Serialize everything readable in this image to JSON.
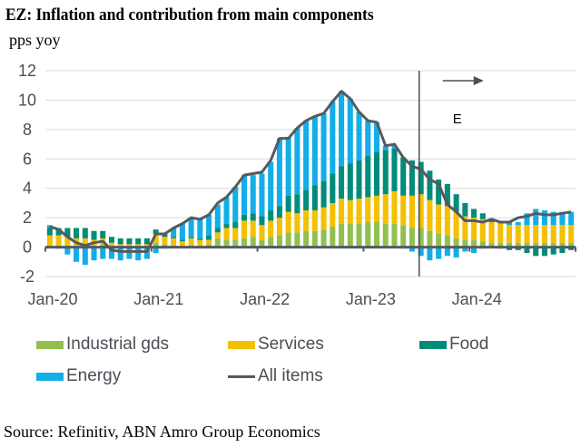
{
  "chart_data": {
    "type": "bar",
    "stacked": true,
    "title": "EZ: Inflation and contribution from main components",
    "ylabel": "pps yoy",
    "xlabel": "",
    "ylim": [
      -2,
      12
    ],
    "yticks": [
      -2,
      0,
      2,
      4,
      6,
      8,
      10,
      12
    ],
    "xtick_labels": [
      "Jan-20",
      "Jan-21",
      "Jan-22",
      "Jan-23",
      "Jan-24"
    ],
    "grid": true,
    "legend_position": "bottom",
    "source": "Source: Refinitiv, ABN Amro Group Economics",
    "forecast_marker": {
      "start_month": "Jul-23",
      "label": "E",
      "arrow": "right"
    },
    "categories": [
      "Jan-20",
      "Feb-20",
      "Mar-20",
      "Apr-20",
      "May-20",
      "Jun-20",
      "Jul-20",
      "Aug-20",
      "Sep-20",
      "Oct-20",
      "Nov-20",
      "Dec-20",
      "Jan-21",
      "Feb-21",
      "Mar-21",
      "Apr-21",
      "May-21",
      "Jun-21",
      "Jul-21",
      "Aug-21",
      "Sep-21",
      "Oct-21",
      "Nov-21",
      "Dec-21",
      "Jan-22",
      "Feb-22",
      "Mar-22",
      "Apr-22",
      "May-22",
      "Jun-22",
      "Jul-22",
      "Aug-22",
      "Sep-22",
      "Oct-22",
      "Nov-22",
      "Dec-22",
      "Jan-23",
      "Feb-23",
      "Mar-23",
      "Apr-23",
      "May-23",
      "Jun-23",
      "Jul-23",
      "Aug-23",
      "Sep-23",
      "Oct-23",
      "Nov-23",
      "Dec-23",
      "Jan-24",
      "Feb-24",
      "Mar-24",
      "Apr-24",
      "May-24",
      "Jun-24",
      "Jul-24",
      "Aug-24",
      "Sep-24",
      "Oct-24",
      "Nov-24",
      "Dec-24"
    ],
    "series": [
      {
        "name": "Industrial gds",
        "kind": "bar",
        "color": "#92c050",
        "values": [
          0.1,
          0.1,
          0.1,
          0.1,
          0.1,
          0.1,
          0.2,
          0.0,
          0.0,
          0.0,
          0.0,
          0.0,
          0.3,
          0.2,
          0.1,
          0.0,
          0.1,
          0.1,
          0.2,
          0.6,
          0.5,
          0.5,
          0.6,
          0.7,
          0.5,
          0.7,
          0.8,
          1.0,
          1.0,
          1.1,
          1.1,
          1.2,
          1.4,
          1.6,
          1.6,
          1.6,
          1.7,
          1.7,
          1.6,
          1.6,
          1.5,
          1.3,
          1.3,
          1.1,
          0.9,
          0.8,
          0.6,
          0.5,
          0.5,
          0.4,
          0.3,
          0.3,
          0.3,
          0.3,
          0.3,
          0.3,
          0.3,
          0.3,
          0.3,
          0.3
        ]
      },
      {
        "name": "Services",
        "kind": "bar",
        "color": "#f5c000",
        "values": [
          0.7,
          0.7,
          0.6,
          0.5,
          0.5,
          0.4,
          0.4,
          0.3,
          0.2,
          0.2,
          0.2,
          0.2,
          0.6,
          0.5,
          0.5,
          0.4,
          0.5,
          0.4,
          0.3,
          0.4,
          0.8,
          0.8,
          1.2,
          1.1,
          1.0,
          1.1,
          1.2,
          1.4,
          1.3,
          1.4,
          1.4,
          1.5,
          1.6,
          1.7,
          1.6,
          1.7,
          1.7,
          1.8,
          2.0,
          2.2,
          2.0,
          2.2,
          2.3,
          2.1,
          2.0,
          2.0,
          1.8,
          1.6,
          1.5,
          1.5,
          1.4,
          1.3,
          1.2,
          1.2,
          1.2,
          1.2,
          1.2,
          1.2,
          1.2,
          1.2
        ]
      },
      {
        "name": "Food",
        "kind": "bar",
        "color": "#008c7a",
        "values": [
          0.5,
          0.5,
          0.6,
          0.7,
          0.7,
          0.6,
          0.5,
          0.4,
          0.4,
          0.4,
          0.4,
          0.4,
          0.3,
          0.2,
          0.1,
          0.1,
          0.1,
          0.1,
          0.3,
          0.3,
          0.3,
          0.4,
          0.4,
          0.5,
          0.6,
          0.7,
          0.8,
          1.1,
          1.3,
          1.4,
          1.7,
          1.8,
          2.0,
          2.2,
          2.5,
          2.6,
          2.8,
          3.0,
          3.0,
          2.9,
          2.6,
          2.4,
          2.2,
          2.0,
          1.7,
          1.5,
          1.2,
          0.9,
          0.6,
          0.4,
          0.2,
          -0.1,
          -0.2,
          -0.2,
          -0.4,
          -0.6,
          -0.6,
          -0.5,
          -0.4,
          -0.2
        ]
      },
      {
        "name": "Energy",
        "kind": "bar",
        "color": "#12aee9",
        "values": [
          0.2,
          -0.1,
          -0.5,
          -1.0,
          -1.2,
          -0.9,
          -0.8,
          -0.8,
          -0.9,
          -0.8,
          -0.9,
          -0.8,
          -0.4,
          -0.1,
          0.6,
          1.1,
          1.3,
          1.3,
          1.4,
          1.6,
          1.8,
          2.4,
          2.7,
          2.6,
          2.9,
          3.3,
          4.6,
          4.0,
          4.5,
          4.7,
          4.7,
          4.6,
          4.9,
          5.1,
          4.4,
          3.3,
          2.4,
          2.0,
          0.3,
          0.2,
          -0.1,
          -0.3,
          -0.6,
          -0.9,
          -0.8,
          -0.6,
          -0.7,
          -0.3,
          -0.4,
          -0.1,
          0.0,
          0.2,
          0.2,
          0.2,
          0.8,
          1.1,
          1.0,
          0.9,
          0.9,
          0.9
        ]
      },
      {
        "name": "All items",
        "kind": "line",
        "color": "#555a60",
        "values": [
          1.4,
          1.2,
          0.7,
          0.3,
          0.1,
          0.3,
          0.4,
          -0.2,
          -0.3,
          -0.3,
          -0.3,
          -0.3,
          0.9,
          0.9,
          1.3,
          1.6,
          2.0,
          1.9,
          2.2,
          3.0,
          3.4,
          4.1,
          4.9,
          5.0,
          5.1,
          5.9,
          7.4,
          7.4,
          8.1,
          8.6,
          8.9,
          9.1,
          9.9,
          10.6,
          10.1,
          9.2,
          8.6,
          8.5,
          6.9,
          7.0,
          6.1,
          5.5,
          5.3,
          4.6,
          4.3,
          2.9,
          2.4,
          1.8,
          1.8,
          1.7,
          1.9,
          1.7,
          1.7,
          2.0,
          2.1,
          2.3,
          2.2,
          2.2,
          2.3,
          2.4
        ]
      }
    ]
  },
  "legend": {
    "items": [
      {
        "label": "Industrial gds",
        "color": "#92c050",
        "kind": "bar"
      },
      {
        "label": "Services",
        "color": "#f5c000",
        "kind": "bar"
      },
      {
        "label": "Food",
        "color": "#008c7a",
        "kind": "bar"
      },
      {
        "label": "Energy",
        "color": "#12aee9",
        "kind": "bar"
      },
      {
        "label": "All items",
        "color": "#555a60",
        "kind": "line"
      }
    ]
  },
  "annotation": {
    "label": "E"
  }
}
